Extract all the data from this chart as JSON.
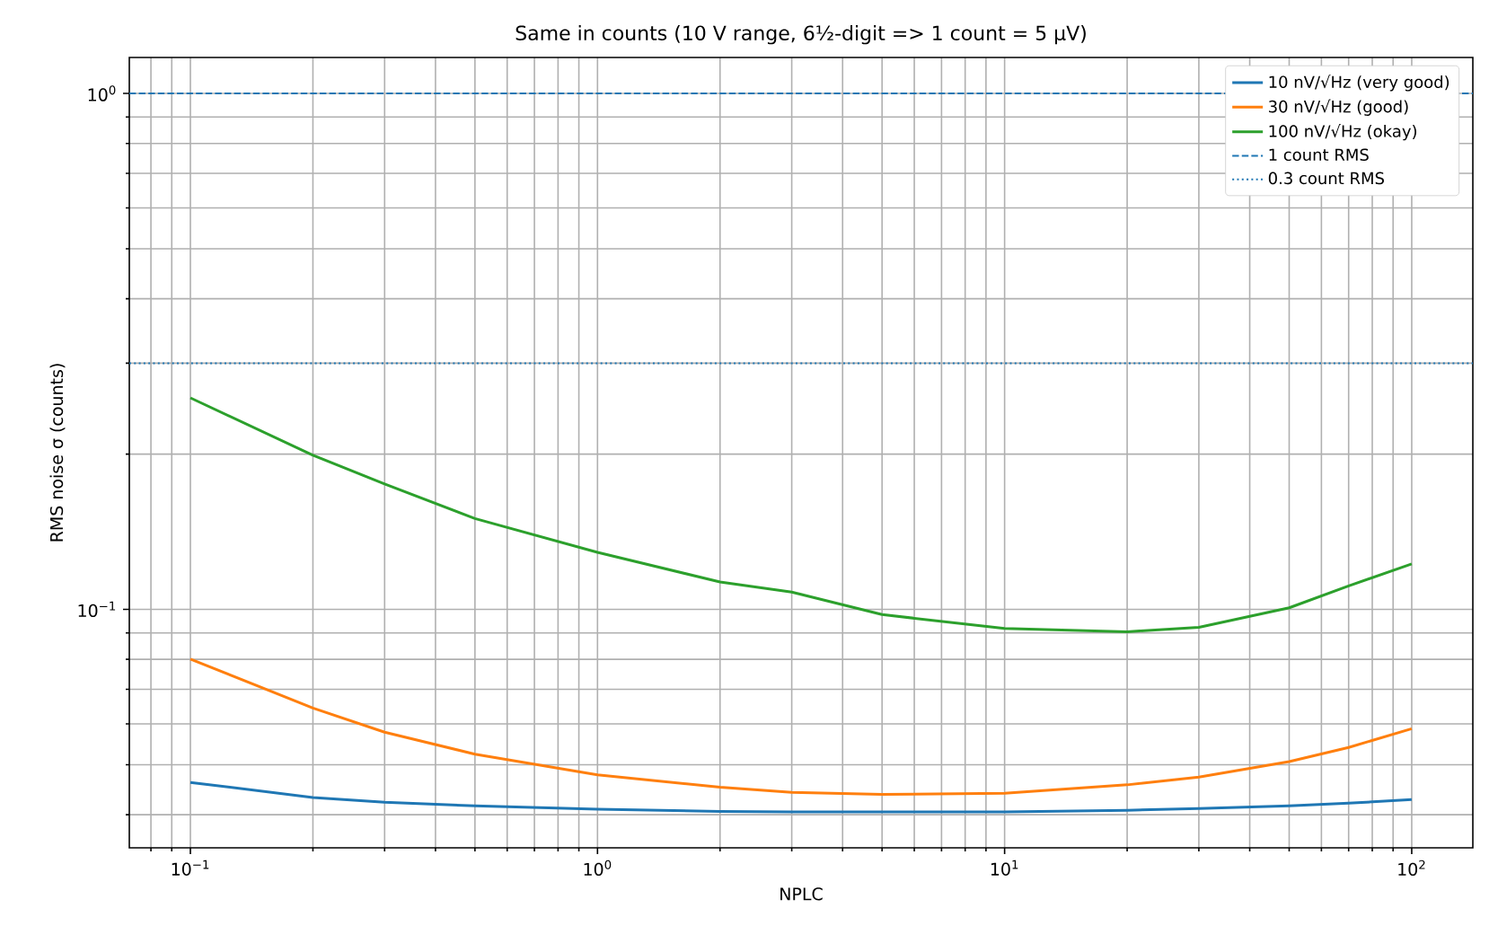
{
  "chart_data": {
    "type": "line",
    "title": "Same in counts (10 V range, 6½-digit => 1 count = 5 µV)",
    "xlabel": "NPLC",
    "ylabel": "RMS noise σ (counts)",
    "x": [
      0.1,
      0.2,
      0.3,
      0.5,
      1,
      2,
      3,
      5,
      10,
      20,
      30,
      50,
      70,
      100
    ],
    "series": [
      {
        "name": "10 nV/√Hz (very good)",
        "color": "#1f77b4",
        "values": [
          0.0462,
          0.0432,
          0.0423,
          0.0416,
          0.041,
          0.0406,
          0.0405,
          0.0405,
          0.0405,
          0.0408,
          0.0411,
          0.0416,
          0.0421,
          0.0428
        ]
      },
      {
        "name": "30 nV/√Hz (good)",
        "color": "#ff7f0e",
        "values": [
          0.0801,
          0.0644,
          0.0578,
          0.0524,
          0.0478,
          0.0452,
          0.0442,
          0.0438,
          0.044,
          0.0457,
          0.0473,
          0.0507,
          0.054,
          0.0587
        ]
      },
      {
        "name": "100 nV/√Hz (okay)",
        "color": "#2ca02c",
        "values": [
          0.257,
          0.199,
          0.175,
          0.15,
          0.129,
          0.113,
          0.108,
          0.0977,
          0.0918,
          0.0905,
          0.0923,
          0.1007,
          0.111,
          0.1225
        ]
      }
    ],
    "ref_lines": [
      {
        "axis": "y",
        "value": 1,
        "label": "1 count RMS",
        "color": "#1f77b4",
        "line_style": "dashed"
      },
      {
        "axis": "y",
        "value": 0.3,
        "label": "0.3 count RMS",
        "color": "#1f77b4",
        "line_style": "dotted"
      }
    ],
    "log": "xy",
    "xlim": [
      0.0708,
      141.3
    ],
    "ylim": [
      0.0345,
      1.174
    ],
    "xticks": [
      {
        "value": 0.1,
        "label": "10$^{−1}$"
      },
      {
        "value": 1,
        "label": "10$^{0}$"
      },
      {
        "value": 10,
        "label": "10$^{1}$"
      },
      {
        "value": 100,
        "label": "10$^{2}$"
      }
    ],
    "yticks": [
      {
        "value": 0.1,
        "label": "10$^{−1}$"
      },
      {
        "value": 1,
        "label": "10$^{0}$"
      }
    ],
    "grid": true,
    "legend": "top right",
    "line_style": "solid",
    "marker": "none"
  }
}
